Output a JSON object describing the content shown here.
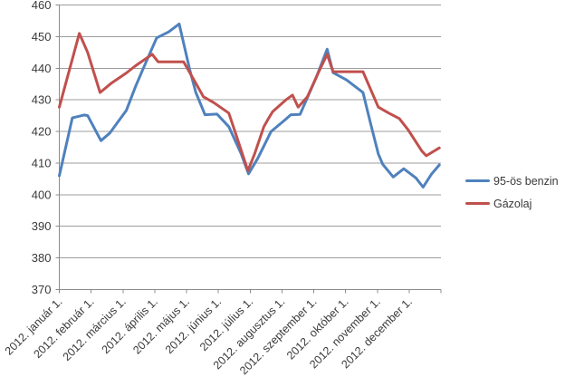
{
  "chart": {
    "legend": [
      {
        "label": "95-ös benzin",
        "color": "#4F81BD"
      },
      {
        "label": "Gázolaj",
        "color": "#C0504D"
      }
    ]
  },
  "chart_data": {
    "type": "line",
    "title": "",
    "xlabel": "",
    "ylabel": "",
    "x_unit": "months since 2012. január 1. (0 = jan 1, 11 = dec 1)",
    "xlim": [
      0,
      12
    ],
    "ylim": [
      370,
      460
    ],
    "y_tick_step": 10,
    "y_tick_labels": [
      "370",
      "380",
      "390",
      "400",
      "410",
      "420",
      "430",
      "440",
      "450",
      "460"
    ],
    "x_tick_labels": [
      "2012. január 1.",
      "2012. február 1.",
      "2012. március 1.",
      "2012. április 1.",
      "2012. május 1.",
      "2012. június 1.",
      "2012. július 1.",
      "2012. augusztus 1.",
      "2012. szeptember 1.",
      "2012. október 1.",
      "2012. november 1.",
      "2012. december 1."
    ],
    "grid": "horizontal",
    "legend_position": "right",
    "series": [
      {
        "name": "95-ös benzin",
        "color": "#4F81BD",
        "points": [
          [
            0.0,
            406.0
          ],
          [
            0.41,
            424.3
          ],
          [
            0.78,
            425.2
          ],
          [
            0.89,
            425.0
          ],
          [
            1.31,
            417.1
          ],
          [
            1.59,
            419.5
          ],
          [
            2.11,
            426.7
          ],
          [
            2.4,
            434.3
          ],
          [
            2.63,
            439.7
          ],
          [
            3.06,
            449.6
          ],
          [
            3.44,
            451.5
          ],
          [
            3.77,
            454.0
          ],
          [
            4.1,
            439.6
          ],
          [
            4.29,
            432.4
          ],
          [
            4.58,
            425.3
          ],
          [
            4.96,
            425.5
          ],
          [
            5.33,
            421.5
          ],
          [
            5.72,
            412.9
          ],
          [
            5.95,
            406.6
          ],
          [
            6.24,
            411.5
          ],
          [
            6.66,
            420.0
          ],
          [
            7.09,
            423.6
          ],
          [
            7.28,
            425.3
          ],
          [
            7.57,
            425.4
          ],
          [
            8.08,
            437.1
          ],
          [
            8.42,
            446.0
          ],
          [
            8.61,
            438.6
          ],
          [
            9.03,
            436.3
          ],
          [
            9.55,
            432.3
          ],
          [
            9.79,
            422.4
          ],
          [
            10.03,
            412.9
          ],
          [
            10.17,
            409.6
          ],
          [
            10.5,
            405.6
          ],
          [
            10.83,
            408.2
          ],
          [
            11.21,
            405.3
          ],
          [
            11.44,
            402.4
          ],
          [
            11.7,
            406.5
          ],
          [
            11.95,
            409.4
          ]
        ]
      },
      {
        "name": "Gázolaj",
        "color": "#C0504D",
        "points": [
          [
            0.0,
            427.7
          ],
          [
            0.63,
            451.0
          ],
          [
            0.89,
            445.0
          ],
          [
            1.28,
            432.3
          ],
          [
            1.64,
            435.3
          ],
          [
            2.11,
            438.5
          ],
          [
            2.4,
            440.8
          ],
          [
            2.92,
            444.4
          ],
          [
            3.11,
            442.0
          ],
          [
            3.91,
            442.0
          ],
          [
            4.29,
            435.3
          ],
          [
            4.53,
            431.0
          ],
          [
            4.86,
            429.1
          ],
          [
            5.33,
            425.8
          ],
          [
            5.57,
            418.6
          ],
          [
            5.93,
            407.6
          ],
          [
            6.14,
            412.9
          ],
          [
            6.43,
            421.5
          ],
          [
            6.57,
            424.0
          ],
          [
            6.71,
            426.3
          ],
          [
            7.14,
            430.1
          ],
          [
            7.33,
            431.5
          ],
          [
            7.51,
            427.7
          ],
          [
            7.8,
            431.0
          ],
          [
            8.13,
            438.3
          ],
          [
            8.42,
            444.4
          ],
          [
            8.61,
            438.9
          ],
          [
            9.55,
            438.9
          ],
          [
            10.03,
            427.7
          ],
          [
            10.36,
            425.8
          ],
          [
            10.69,
            424.1
          ],
          [
            10.97,
            420.5
          ],
          [
            11.4,
            413.8
          ],
          [
            11.54,
            412.3
          ],
          [
            11.95,
            414.8
          ]
        ]
      }
    ]
  }
}
